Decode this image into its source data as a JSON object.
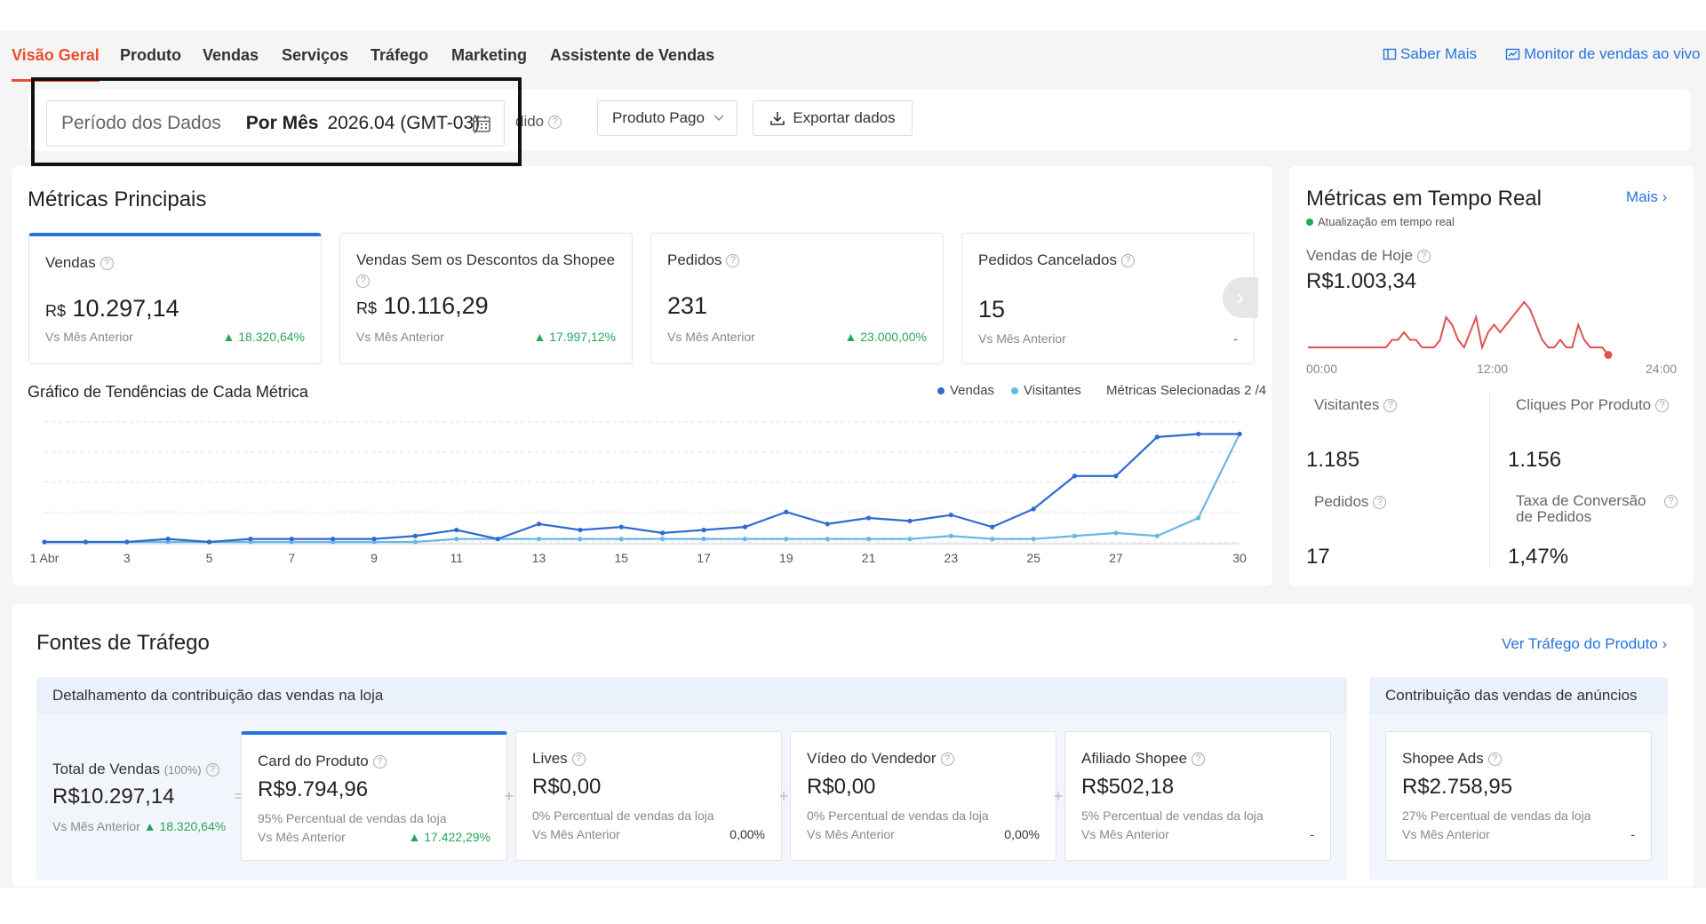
{
  "nav": {
    "tabs": [
      "Visão Geral",
      "Produto",
      "Vendas",
      "Serviços",
      "Tráfego",
      "Marketing",
      "Assistente de Vendas"
    ],
    "saber_mais": "Saber Mais",
    "monitor": "Monitor de vendas ao vivo"
  },
  "filters": {
    "period_label": "Período dos Dados",
    "period_mode": "Por Mês",
    "period_value": "2026.04 (GMT-03)",
    "hidden_fragment": "dido",
    "order_type": "Produto Pago",
    "export": "Exportar dados"
  },
  "main_metrics": {
    "title": "Métricas Principais",
    "cards": [
      {
        "title": "Vendas",
        "currency": "R$",
        "value": "10.297,14",
        "vs": "Vs Mês Anterior",
        "delta": "18.320,64%"
      },
      {
        "title": "Vendas Sem os Descontos da Shopee",
        "currency": "R$",
        "value": "10.116,29",
        "vs": "Vs Mês Anterior",
        "delta": "17.997,12%"
      },
      {
        "title": "Pedidos",
        "currency": "",
        "value": "231",
        "vs": "Vs Mês Anterior",
        "delta": "23.000,00%"
      },
      {
        "title": "Pedidos Cancelados",
        "currency": "",
        "value": "15",
        "vs": "Vs Mês Anterior",
        "delta": "-"
      }
    ]
  },
  "trend_chart": {
    "title": "Gráfico de Tendências de Cada Métrica",
    "selected": "Métricas Selecionadas 2 /4"
  },
  "chart_data": {
    "type": "line",
    "x_tick_labels": [
      "1 Abr",
      "3",
      "5",
      "7",
      "9",
      "11",
      "13",
      "15",
      "17",
      "19",
      "21",
      "23",
      "25",
      "27",
      "30"
    ],
    "x": [
      1,
      2,
      3,
      4,
      5,
      6,
      7,
      8,
      9,
      10,
      11,
      12,
      13,
      14,
      15,
      16,
      17,
      18,
      19,
      20,
      21,
      22,
      23,
      24,
      25,
      26,
      27,
      28,
      29,
      30
    ],
    "series": [
      {
        "name": "Vendas",
        "color": "#2d6bd0",
        "values": [
          0,
          0,
          0,
          1,
          0,
          1,
          1,
          1,
          1,
          2,
          4,
          1,
          6,
          4,
          5,
          3,
          4,
          5,
          10,
          6,
          8,
          7,
          9,
          5,
          11,
          22,
          22,
          35,
          36,
          36
        ]
      },
      {
        "name": "Visitantes",
        "color": "#6ab7e6",
        "values": [
          0,
          0,
          0,
          0,
          0,
          0,
          0,
          0,
          0,
          0,
          1,
          1,
          1,
          1,
          1,
          1,
          1,
          1,
          1,
          1,
          1,
          1,
          2,
          1,
          1,
          2,
          3,
          2,
          8,
          36
        ]
      }
    ],
    "ylim": [
      0,
      40
    ],
    "grid": true,
    "legend": "top-right"
  },
  "realtime": {
    "title": "Métricas em Tempo Real",
    "more": "Mais",
    "status": "Atualização em tempo real",
    "today_label": "Vendas de Hoje",
    "today_value": "R$1.003,34",
    "axis": [
      "00:00",
      "12:00",
      "24:00"
    ],
    "color": "#e05151",
    "sparkline": [
      0,
      0,
      0,
      0,
      0,
      0,
      0,
      0,
      0,
      0,
      0,
      0,
      0,
      0,
      1,
      1,
      2,
      1,
      1,
      0,
      0,
      0,
      1,
      4,
      3,
      1,
      0,
      2,
      4,
      0,
      2,
      3,
      2,
      3,
      4,
      5,
      6,
      5,
      3,
      1,
      0,
      0,
      1,
      0,
      0,
      3,
      1,
      0,
      0,
      0,
      -1
    ],
    "stats": [
      {
        "label": "Visitantes",
        "value": "1.185"
      },
      {
        "label": "Cliques Por Produto",
        "value": "1.156"
      },
      {
        "label": "Pedidos",
        "value": "17"
      },
      {
        "label": "Taxa de Conversão de Pedidos",
        "value": "1,47%"
      }
    ]
  },
  "traffic": {
    "title": "Fontes de Tráfego",
    "link": "Ver Tráfego do Produto",
    "breakdown_title": "Detalhamento da contribuição das vendas na loja",
    "ads_title": "Contribuição das vendas de anúncios",
    "total": {
      "label": "Total de Vendas",
      "pct": "(100%)",
      "value": "R$10.297,14",
      "vs": "Vs Mês Anterior",
      "delta": "18.320,64%"
    },
    "cards": [
      {
        "title": "Card do Produto",
        "value": "R$9.794,96",
        "pct": "95% Percentual de vendas da loja",
        "vs": "Vs Mês Anterior",
        "delta": "17.422,29%"
      },
      {
        "title": "Lives",
        "value": "R$0,00",
        "pct": "0% Percentual de vendas da loja",
        "vs": "Vs Mês Anterior",
        "delta": "0,00%"
      },
      {
        "title": "Vídeo do Vendedor",
        "value": "R$0,00",
        "pct": "0% Percentual de vendas da loja",
        "vs": "Vs Mês Anterior",
        "delta": "0,00%"
      },
      {
        "title": "Afiliado Shopee",
        "value": "R$502,18",
        "pct": "5% Percentual de vendas da loja",
        "vs": "Vs Mês Anterior",
        "delta": "-"
      }
    ],
    "ads": {
      "title": "Shopee Ads",
      "value": "R$2.758,95",
      "pct": "27% Percentual de vendas da loja",
      "vs": "Vs Mês Anterior",
      "delta": "-"
    }
  }
}
